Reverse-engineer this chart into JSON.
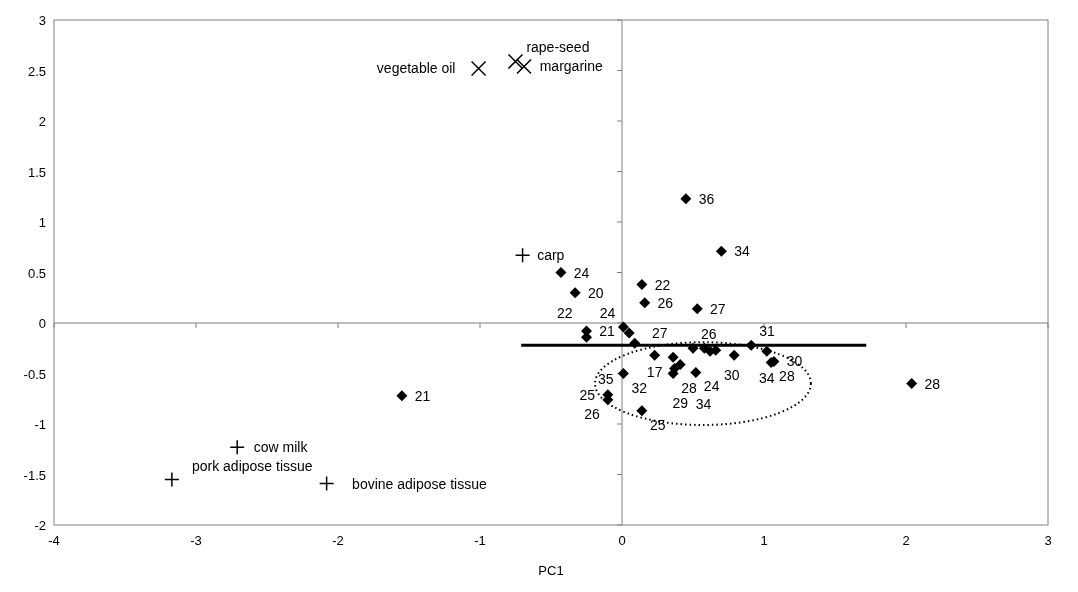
{
  "chart_data": {
    "type": "scatter",
    "xlabel": "PC1",
    "xlim": [
      -4,
      3
    ],
    "xticks": [
      -4,
      -3,
      -2,
      -1,
      0,
      1,
      2,
      3
    ],
    "ylim": [
      -2,
      3
    ],
    "yticks": [
      -2,
      -1.5,
      -1,
      -0.5,
      0,
      0.5,
      1,
      1.5,
      2,
      2.5,
      3
    ],
    "series": [
      {
        "marker": "diamond",
        "color": "#000000",
        "x": [
          0.45,
          0.7,
          -0.43,
          -0.33,
          0.14,
          0.16,
          0.53,
          -0.25,
          -0.25,
          0.01,
          0.05,
          0.09,
          0.01,
          -0.1,
          -0.1,
          0.14,
          -1.55,
          0.23,
          0.36,
          0.41,
          0.37,
          0.36,
          0.52,
          0.5,
          0.58,
          0.62,
          0.66,
          0.79,
          0.91,
          1.02,
          1.05,
          1.07,
          2.04
        ],
        "values": [
          1.23,
          0.71,
          0.5,
          0.3,
          0.38,
          0.2,
          0.14,
          -0.08,
          -0.14,
          -0.04,
          -0.1,
          -0.2,
          -0.5,
          -0.71,
          -0.76,
          -0.87,
          -0.72,
          -0.32,
          -0.34,
          -0.41,
          -0.45,
          -0.5,
          -0.49,
          -0.25,
          -0.25,
          -0.28,
          -0.27,
          -0.32,
          -0.22,
          -0.28,
          -0.39,
          -0.38,
          -0.6
        ]
      },
      {
        "marker": "cross",
        "color": "#000000",
        "x": [
          -0.7,
          -2.71,
          -3.17,
          -2.08
        ],
        "values": [
          0.67,
          -1.23,
          -1.55,
          -1.59
        ]
      },
      {
        "marker": "x",
        "color": "#000000",
        "x": [
          -1.01,
          -0.75,
          -0.69
        ],
        "values": [
          2.52,
          2.59,
          2.54
        ]
      },
      {
        "type": "line",
        "marker": "none",
        "color": "#000000",
        "x": [
          -0.71,
          1.72
        ],
        "values": [
          -0.22,
          -0.22
        ]
      }
    ],
    "annotations": [
      {
        "text": "36",
        "x": 0.45,
        "y": 1.23
      },
      {
        "text": "34",
        "x": 0.7,
        "y": 0.71
      },
      {
        "text": "24",
        "x": -0.43,
        "y": 0.5
      },
      {
        "text": "20",
        "x": -0.33,
        "y": 0.3
      },
      {
        "text": "22",
        "x": 0.14,
        "y": 0.38
      },
      {
        "text": "26",
        "x": 0.16,
        "y": 0.2
      },
      {
        "text": "27",
        "x": 0.53,
        "y": 0.14
      },
      {
        "text": "31",
        "x": 0.91,
        "y": -0.22
      },
      {
        "text": "24",
        "x": 0.01,
        "y": -0.04
      },
      {
        "text": "27",
        "x": 0.05,
        "y": -0.1
      },
      {
        "text": "26",
        "x": 0.5,
        "y": -0.25
      },
      {
        "text": "30",
        "x": 0.62,
        "y": -0.28
      },
      {
        "text": "21",
        "x": -0.25,
        "y": -0.08
      },
      {
        "text": "17",
        "x": 0.23,
        "y": -0.32
      },
      {
        "text": "35",
        "x": 0.09,
        "y": -0.2
      },
      {
        "text": "34",
        "x": 1.02,
        "y": -0.28
      },
      {
        "text": "22",
        "x": -0.25,
        "y": -0.14
      },
      {
        "text": "32",
        "x": 0.01,
        "y": -0.5
      },
      {
        "text": "30",
        "x": 1.07,
        "y": -0.38
      },
      {
        "text": "25",
        "x": -0.1,
        "y": -0.71
      },
      {
        "text": "28",
        "x": 0.36,
        "y": -0.5
      },
      {
        "text": "24",
        "x": 0.52,
        "y": -0.49
      },
      {
        "text": "28",
        "x": 1.05,
        "y": -0.39
      },
      {
        "text": "28",
        "x": 2.04,
        "y": -0.6
      },
      {
        "text": "29",
        "x": 0.41,
        "y": -0.41
      },
      {
        "text": "34",
        "x": 0.37,
        "y": -0.45
      },
      {
        "text": "21",
        "x": -1.55,
        "y": -0.72
      },
      {
        "text": "25",
        "x": 0.14,
        "y": -0.87
      },
      {
        "text": "26",
        "x": -0.1,
        "y": -0.76
      },
      {
        "text": "carp",
        "x": -0.7,
        "y": 0.67
      },
      {
        "text": "vegetable oil",
        "x": -1.01,
        "y": 2.52
      },
      {
        "text": "rape-seed",
        "x": -0.75,
        "y": 2.59
      },
      {
        "text": "margarine",
        "x": -0.69,
        "y": 2.54
      },
      {
        "text": "cow milk",
        "x": -2.71,
        "y": -1.23
      },
      {
        "text": "bovine adipose tissue",
        "x": -2.08,
        "y": -1.59
      },
      {
        "text": "pork adipose tissue",
        "x": -3.17,
        "y": -1.55
      }
    ]
  }
}
